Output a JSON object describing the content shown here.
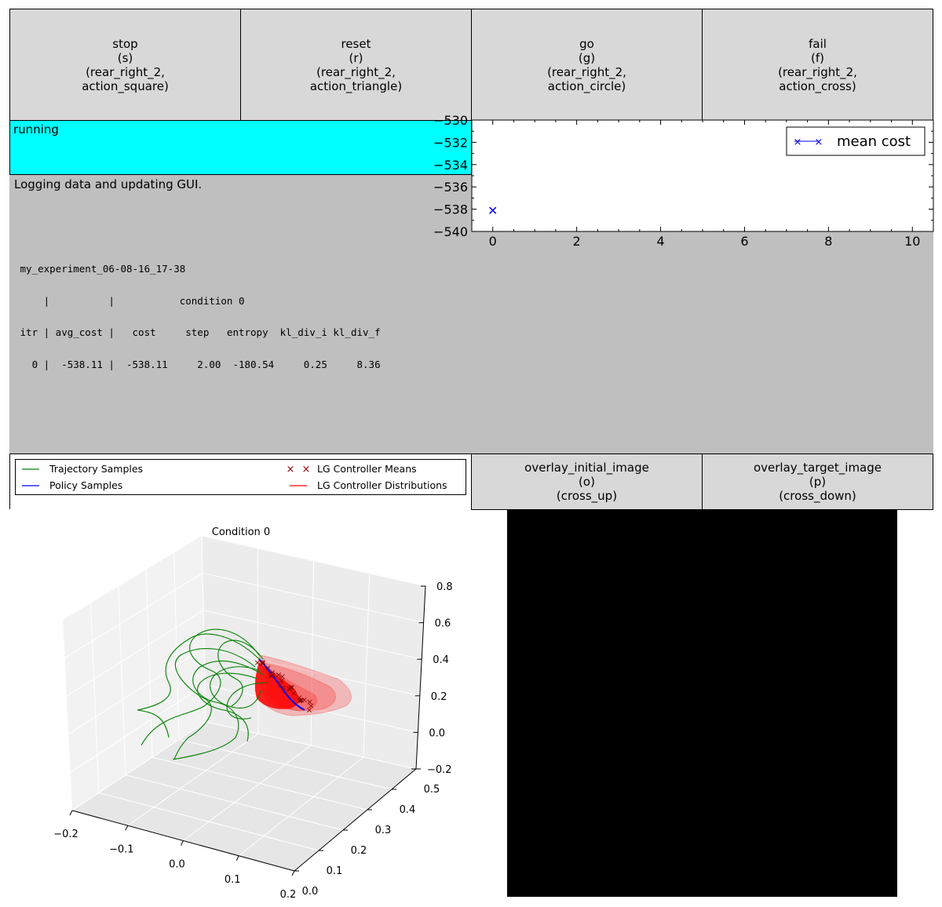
{
  "buttons": [
    {
      "name": "stop",
      "key": "(s)",
      "device": "(rear_right_2,",
      "action": "action_square)"
    },
    {
      "name": "reset",
      "key": "(r)",
      "device": "(rear_right_2,",
      "action": "action_triangle)"
    },
    {
      "name": "go",
      "key": "(g)",
      "device": "(rear_right_2,",
      "action": "action_circle)"
    },
    {
      "name": "fail",
      "key": "(f)",
      "device": "(rear_right_2,",
      "action": "action_cross)"
    }
  ],
  "overlay_buttons": [
    {
      "name": "overlay_initial_image",
      "key": "(o)",
      "action": "(cross_up)"
    },
    {
      "name": "overlay_target_image",
      "key": "(p)",
      "action": "(cross_down)"
    }
  ],
  "status": {
    "text": "running",
    "color": "#00ffff"
  },
  "log_message": "Logging data and updating GUI.",
  "output_table": {
    "lines": [
      " my_experiment_06-08-16_17-38",
      "     |          |           condition 0",
      " itr | avg_cost |   cost     step   entropy  kl_div_i kl_div_f",
      "   0 |  -538.11 |  -538.11     2.00  -180.54     0.25     8.36"
    ]
  },
  "cost_plot": {
    "chart_data": {
      "type": "line",
      "title": "",
      "xlabel": "",
      "ylabel": "",
      "xlim": [
        -0.5,
        10.5
      ],
      "ylim": [
        -540,
        -530
      ],
      "x_ticks": [
        "0",
        "2",
        "4",
        "6",
        "8",
        "10"
      ],
      "y_ticks": [
        "−530",
        "−532",
        "−534",
        "−536",
        "−538",
        "−540"
      ],
      "series": [
        {
          "name": "mean cost",
          "marker": "x",
          "color": "#0000ff",
          "x": [
            0
          ],
          "y": [
            -538.11
          ]
        }
      ],
      "legend_position": "top-right"
    }
  },
  "trajectory_legend": {
    "items": [
      {
        "label": "Trajectory Samples",
        "color": "#008000",
        "style": "line"
      },
      {
        "label": "Policy Samples",
        "color": "#0000ff",
        "style": "line"
      },
      {
        "label": "LG Controller Means",
        "color": "#8b0000",
        "style": "x"
      },
      {
        "label": "LG Controller Distributions",
        "color": "#ff0000",
        "style": "line"
      }
    ]
  },
  "plot3d": {
    "title": "Condition 0",
    "x_ticks": [
      "−0.2",
      "−0.1",
      "0.0",
      "0.1",
      "0.2"
    ],
    "y_ticks": [
      "0.0",
      "0.1",
      "0.2",
      "0.3",
      "0.4",
      "0.5"
    ],
    "z_ticks": [
      "−0.2",
      "0.0",
      "0.2",
      "0.4",
      "0.6",
      "0.8"
    ],
    "colors": {
      "trajectory": "#008000",
      "policy": "#0000ff",
      "lg_means": "#8b0000",
      "lg_dist": "#ff0000"
    }
  }
}
